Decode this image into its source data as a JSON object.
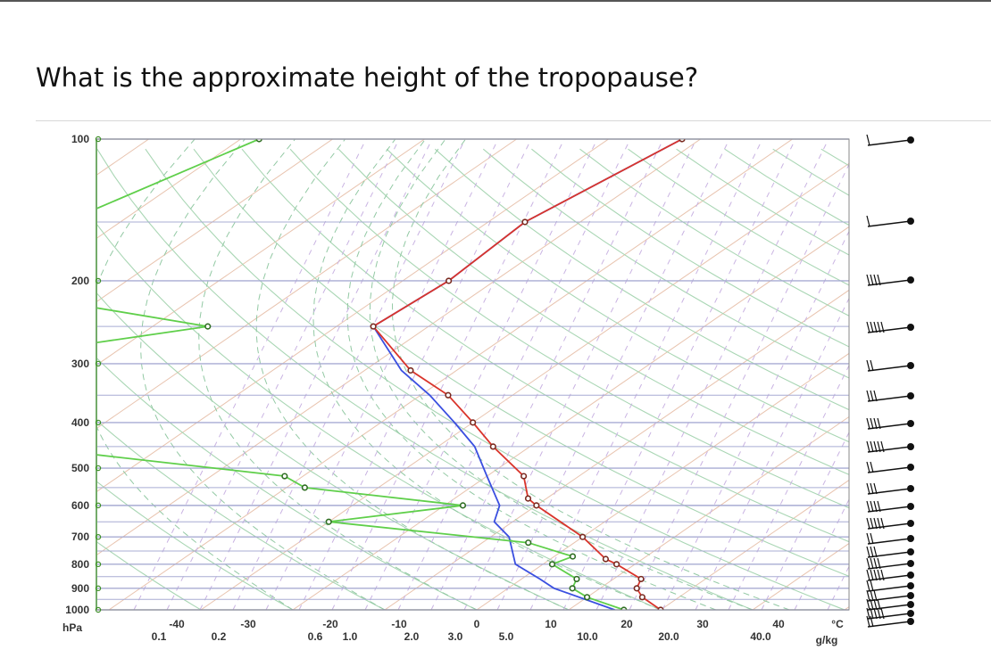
{
  "question": "What is the approximate height of the tropopause?",
  "chart_data": {
    "type": "skew-t log-p sounding",
    "y_axis": {
      "unit_label": "hPa",
      "tick_labels": [
        "100",
        "200",
        "300",
        "400",
        "500",
        "600",
        "700",
        "800",
        "900",
        "1000"
      ],
      "scale": "log-pressure"
    },
    "x_axis_temperature": {
      "unit_label": "°C",
      "tick_labels": [
        "-40",
        "-30",
        "-20",
        "-10",
        "0",
        "10",
        "20",
        "30",
        "40"
      ],
      "values": [
        -40,
        -30,
        -20,
        -10,
        0,
        10,
        20,
        30,
        40
      ]
    },
    "x_axis_mixing_ratio": {
      "unit_label": "g/kg",
      "tick_labels": [
        "0.1",
        "0.2",
        "0.6",
        "1.0",
        "2.0",
        "3.0",
        "5.0",
        "10.0",
        "20.0",
        "40.0"
      ]
    },
    "series": [
      {
        "role": "temperature",
        "color": "#d9342b",
        "points": [
          {
            "p": 100,
            "t": -52
          },
          {
            "p": 150,
            "t": -56
          },
          {
            "p": 200,
            "t": -55
          },
          {
            "p": 250,
            "t": -56
          },
          {
            "p": 310,
            "t": -45
          },
          {
            "p": 350,
            "t": -37
          },
          {
            "p": 400,
            "t": -30
          },
          {
            "p": 450,
            "t": -24
          },
          {
            "p": 520,
            "t": -16
          },
          {
            "p": 580,
            "t": -12
          },
          {
            "p": 600,
            "t": -10
          },
          {
            "p": 700,
            "t": 0
          },
          {
            "p": 780,
            "t": 6
          },
          {
            "p": 800,
            "t": 8
          },
          {
            "p": 860,
            "t": 13
          },
          {
            "p": 900,
            "t": 14
          },
          {
            "p": 940,
            "t": 16
          },
          {
            "p": 1000,
            "t": 20
          }
        ]
      },
      {
        "role": "temperature (near-surface profile)",
        "color": "#3a4fe0",
        "points": [
          {
            "p": 100,
            "t": -52
          },
          {
            "p": 150,
            "t": -56
          },
          {
            "p": 200,
            "t": -55
          },
          {
            "p": 250,
            "t": -56
          },
          {
            "p": 310,
            "t": -46
          },
          {
            "p": 350,
            "t": -39
          },
          {
            "p": 400,
            "t": -32
          },
          {
            "p": 450,
            "t": -26
          },
          {
            "p": 520,
            "t": -20
          },
          {
            "p": 600,
            "t": -14
          },
          {
            "p": 650,
            "t": -12
          },
          {
            "p": 700,
            "t": -8
          },
          {
            "p": 800,
            "t": -3
          },
          {
            "p": 860,
            "t": 2
          },
          {
            "p": 900,
            "t": 5
          },
          {
            "p": 1000,
            "t": 15
          }
        ]
      },
      {
        "role": "dewpoint",
        "color": "#5fcf4a",
        "points": [
          {
            "p": 100,
            "t": -98
          },
          {
            "p": 150,
            "t": -106
          },
          {
            "p": 200,
            "t": -111
          },
          {
            "p": 250,
            "t": -74
          },
          {
            "p": 300,
            "t": -96
          },
          {
            "p": 350,
            "t": -85
          },
          {
            "p": 400,
            "t": -78
          },
          {
            "p": 450,
            "t": -75
          },
          {
            "p": 520,
            "t": -42
          },
          {
            "p": 550,
            "t": -38
          },
          {
            "p": 600,
            "t": -18
          },
          {
            "p": 650,
            "t": -30
          },
          {
            "p": 720,
            "t": -5
          },
          {
            "p": 770,
            "t": 2
          },
          {
            "p": 800,
            "t": 1
          },
          {
            "p": 860,
            "t": 6
          },
          {
            "p": 900,
            "t": 7
          },
          {
            "p": 940,
            "t": 10
          },
          {
            "p": 1000,
            "t": 16
          }
        ]
      }
    ],
    "wind_barbs_column": "right",
    "grid": true
  }
}
